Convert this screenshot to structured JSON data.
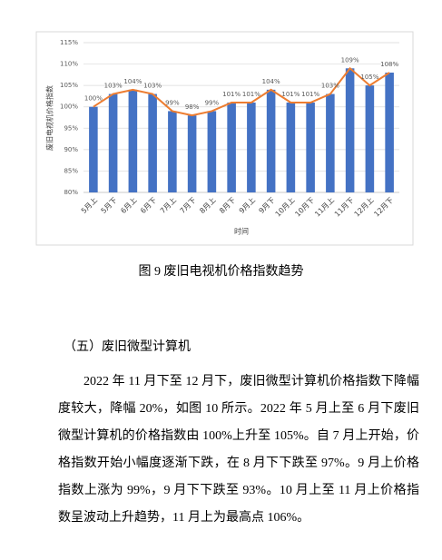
{
  "chart_data": {
    "type": "bar_line",
    "y_label": "废旧电视机价格指数",
    "x_label": "时间",
    "categories": [
      "5月上",
      "5月下",
      "6月上",
      "6月下",
      "7月上",
      "7月下",
      "8月上",
      "8月下",
      "9月上",
      "9月下",
      "10月上",
      "10月下",
      "11月上",
      "11月下",
      "12月上",
      "12月下"
    ],
    "values": [
      100,
      103,
      104,
      103,
      99,
      98,
      99,
      101,
      101,
      104,
      101,
      101,
      103,
      109,
      105,
      108
    ],
    "value_labels": [
      "100%",
      "103%",
      "104%",
      "103%",
      "99%",
      "98%",
      "99%",
      "101%",
      "101%",
      "104%",
      "101%",
      "101%",
      "103%",
      "109%",
      "105%",
      "108%"
    ],
    "color": "#4472c4",
    "line_color": "#ed7d31",
    "ylim": [
      80,
      115
    ],
    "yticks": [
      {
        "value": 80,
        "label": "80%"
      },
      {
        "value": 85,
        "label": "85%"
      },
      {
        "value": 90,
        "label": "90%"
      },
      {
        "value": 95,
        "label": "95%"
      },
      {
        "value": 100,
        "label": "100%"
      },
      {
        "value": 105,
        "label": "105%"
      },
      {
        "value": 110,
        "label": "110%"
      },
      {
        "value": 115,
        "label": "115%"
      }
    ],
    "grid": true
  },
  "caption": "图 9  废旧电视机价格指数趋势",
  "section_heading": "（五）废旧微型计算机",
  "paragraph": "2022 年 11 月下至 12 月下，废旧微型计算机价格指数下降幅度较大，降幅 20%，如图 10 所示。2022 年 5 月上至 6 月下废旧微型计算机的价格指数由 100%上升至 105%。自 7 月上开始，价格指数开始小幅度逐渐下跌，在 8 月下下跌至 97%。9 月上价格指数上涨为 99%，9 月下下跌至 93%。10 月上至 11 月上价格指数呈波动上升趋势，11 月上为最高点 106%。"
}
